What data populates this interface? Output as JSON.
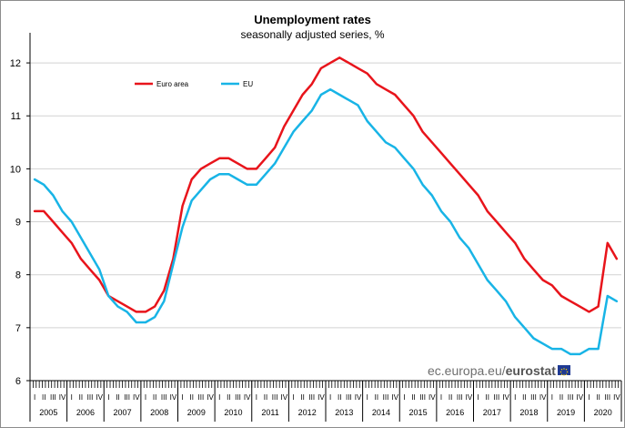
{
  "title": "Unemployment rates",
  "subtitle": "seasonally adjusted series, %",
  "credit": {
    "prefix": "ec.europa.eu/",
    "brand": "eurostat"
  },
  "logo": {
    "icon": "eu-flag-icon",
    "color": "#1f3a93"
  },
  "chart_data": {
    "type": "line",
    "x_unit": "quarter",
    "x_start": "2005-Q1",
    "x_end": "2020-Q4",
    "years": [
      "2005",
      "2006",
      "2007",
      "2008",
      "2009",
      "2010",
      "2011",
      "2012",
      "2013",
      "2014",
      "2015",
      "2016",
      "2017",
      "2018",
      "2019",
      "2020"
    ],
    "quarter_labels": [
      "I",
      "II",
      "III",
      "IV"
    ],
    "ylim": [
      6,
      12.5
    ],
    "yticks": [
      6,
      7,
      8,
      9,
      10,
      11,
      12
    ],
    "grid": "horizontal",
    "legend_position": "top-left",
    "series": [
      {
        "name": "Euro area",
        "color": "#e8141b",
        "values": [
          9.2,
          9.2,
          9.0,
          8.8,
          8.6,
          8.3,
          8.1,
          7.9,
          7.6,
          7.5,
          7.4,
          7.3,
          7.3,
          7.4,
          7.7,
          8.3,
          9.3,
          9.8,
          10.0,
          10.1,
          10.2,
          10.2,
          10.1,
          10.0,
          10.0,
          10.2,
          10.4,
          10.8,
          11.1,
          11.4,
          11.6,
          11.9,
          12.0,
          12.1,
          12.0,
          11.9,
          11.8,
          11.6,
          11.5,
          11.4,
          11.2,
          11.0,
          10.7,
          10.5,
          10.3,
          10.1,
          9.9,
          9.7,
          9.5,
          9.2,
          9.0,
          8.8,
          8.6,
          8.3,
          8.1,
          7.9,
          7.8,
          7.6,
          7.5,
          7.4,
          7.3,
          7.4,
          8.6,
          8.3
        ]
      },
      {
        "name": "EU",
        "color": "#18b4e6",
        "values": [
          9.8,
          9.7,
          9.5,
          9.2,
          9.0,
          8.7,
          8.4,
          8.1,
          7.6,
          7.4,
          7.3,
          7.1,
          7.1,
          7.2,
          7.5,
          8.2,
          8.9,
          9.4,
          9.6,
          9.8,
          9.9,
          9.9,
          9.8,
          9.7,
          9.7,
          9.9,
          10.1,
          10.4,
          10.7,
          10.9,
          11.1,
          11.4,
          11.5,
          11.4,
          11.3,
          11.2,
          10.9,
          10.7,
          10.5,
          10.4,
          10.2,
          10.0,
          9.7,
          9.5,
          9.2,
          9.0,
          8.7,
          8.5,
          8.2,
          7.9,
          7.7,
          7.5,
          7.2,
          7.0,
          6.8,
          6.7,
          6.6,
          6.6,
          6.5,
          6.5,
          6.6,
          6.6,
          7.6,
          7.5
        ]
      }
    ]
  }
}
